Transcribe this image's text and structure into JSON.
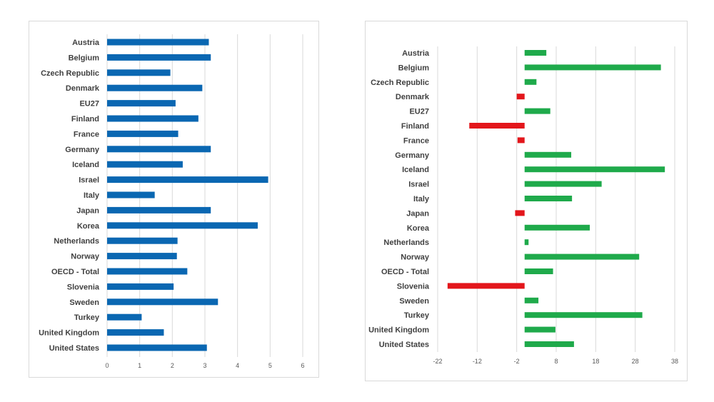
{
  "chart_data": [
    {
      "type": "bar",
      "orientation": "horizontal",
      "title": "",
      "xlabel": "",
      "ylabel": "",
      "xlim": [
        0,
        6
      ],
      "xticks": [
        0,
        1,
        2,
        3,
        4,
        5,
        6
      ],
      "grid": true,
      "legend": "none",
      "bar_color": "#0a67b2",
      "categories": [
        "Austria",
        "Belgium",
        "Czech Republic",
        "Denmark",
        "EU27",
        "Finland",
        "France",
        "Germany",
        "Iceland",
        "Israel",
        "Italy",
        "Japan",
        "Korea",
        "Netherlands",
        "Norway",
        "OECD - Total",
        "Slovenia",
        "Sweden",
        "Turkey",
        "United Kingdom",
        "United States"
      ],
      "values": [
        3.12,
        3.18,
        1.94,
        2.92,
        2.1,
        2.8,
        2.18,
        3.18,
        2.32,
        4.94,
        1.46,
        3.18,
        4.62,
        2.16,
        2.14,
        2.46,
        2.04,
        3.4,
        1.06,
        1.74,
        3.06
      ]
    },
    {
      "type": "bar",
      "orientation": "horizontal",
      "title": "",
      "xlabel": "",
      "ylabel": "",
      "xlim": [
        -22,
        38
      ],
      "xticks": [
        -22,
        -12,
        -2,
        8,
        18,
        28,
        38
      ],
      "grid": true,
      "legend": "none",
      "positive_color": "#1faa4b",
      "negative_color": "#e3161b",
      "categories": [
        "Austria",
        "Belgium",
        "Czech Republic",
        "Denmark",
        "EU27",
        "Finland",
        "France",
        "Germany",
        "Iceland",
        "Israel",
        "Italy",
        "Japan",
        "Korea",
        "Netherlands",
        "Norway",
        "OECD - Total",
        "Slovenia",
        "Sweden",
        "Turkey",
        "United Kingdom",
        "United States"
      ],
      "values": [
        5.5,
        34.5,
        3,
        -2,
        6.5,
        -14,
        -1.8,
        11.8,
        35.5,
        19.5,
        12,
        -2.4,
        16.5,
        1,
        29,
        7.2,
        -19.5,
        3.5,
        29.8,
        7.8,
        12.5
      ]
    }
  ]
}
